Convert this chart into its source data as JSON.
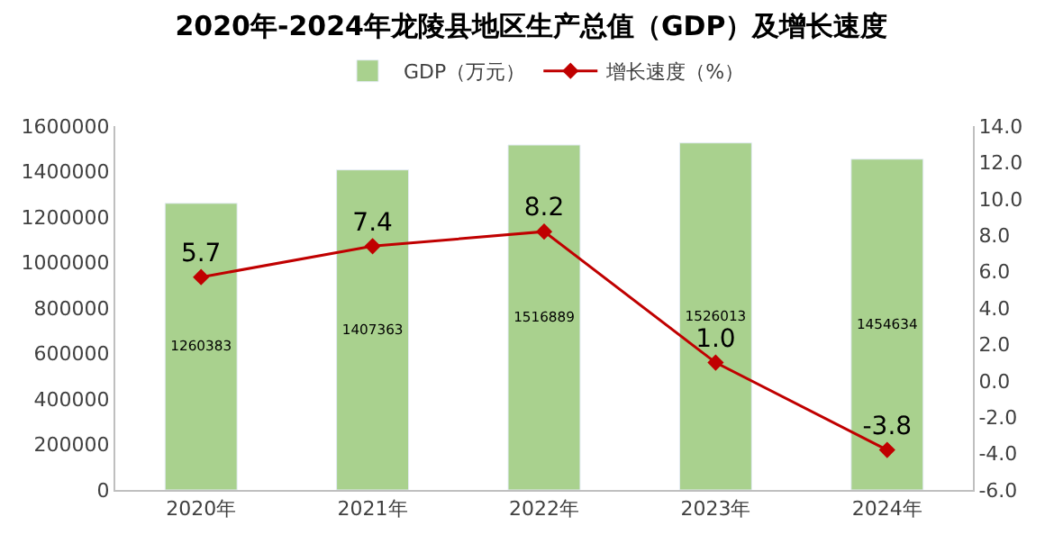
{
  "chart_data": {
    "type": "bar",
    "title": "2020年-2024年龙陵县地区生产总值（GDP）及增长速度",
    "categories": [
      "2020年",
      "2021年",
      "2022年",
      "2023年",
      "2024年"
    ],
    "series": [
      {
        "name": "GDP（万元）",
        "color": "#a9d18e",
        "values": [
          1260383,
          1407363,
          1516889,
          1526013,
          1454634
        ]
      },
      {
        "name": "增长速度（%）",
        "type": "line",
        "axis": "y2",
        "color": "#c00000",
        "marker": "diamond",
        "values": [
          5.7,
          7.4,
          8.2,
          1.0,
          -3.8
        ],
        "value_labels": [
          "5.7",
          "7.4",
          "8.2",
          "1.0",
          "-3.8"
        ]
      }
    ],
    "ylim": [
      0,
      1600000
    ],
    "yticks": [
      0,
      200000,
      400000,
      600000,
      800000,
      1000000,
      1200000,
      1400000,
      1600000
    ],
    "y2lim": [
      -6,
      14
    ],
    "y2ticks": [
      {
        "value": -6,
        "label": "-6.0"
      },
      {
        "value": -4,
        "label": "-4.0"
      },
      {
        "value": -2,
        "label": "-2.0"
      },
      {
        "value": 0,
        "label": "0.0"
      },
      {
        "value": 2,
        "label": "2.0"
      },
      {
        "value": 4,
        "label": "4.0"
      },
      {
        "value": 6,
        "label": "6.0"
      },
      {
        "value": 8,
        "label": "8.0"
      },
      {
        "value": 10,
        "label": "10.0"
      },
      {
        "value": 12,
        "label": "12.0"
      },
      {
        "value": 14,
        "label": "14.0"
      }
    ],
    "data_labels": true,
    "grid": false,
    "legend": "top"
  }
}
